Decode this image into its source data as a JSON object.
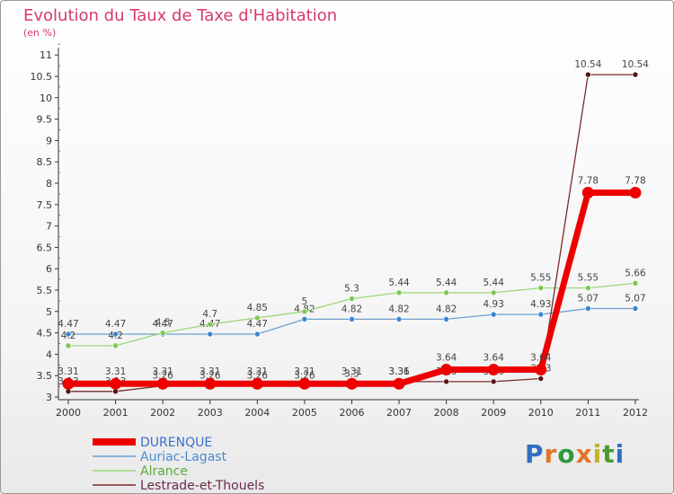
{
  "title": "Evolution du Taux de Taxe d'Habitation",
  "subtitle": "(en %)",
  "brand": [
    "P",
    "r",
    "o",
    "x",
    "i",
    "t",
    "i"
  ],
  "brand_colors": [
    "#2f6fc0",
    "#e0762b",
    "#2f9a3a",
    "#e0762b",
    "#c7b221",
    "#4a9a2c",
    "#2f6fc0"
  ],
  "chart_data": {
    "type": "line",
    "x": [
      "2000",
      "2001",
      "2002",
      "2003",
      "2004",
      "2005",
      "2006",
      "2007",
      "2008",
      "2009",
      "2010",
      "2011",
      "2012"
    ],
    "yticks": [
      "3",
      "3.5",
      "4",
      "4.5",
      "5",
      "5.5",
      "6",
      "6.5",
      "7",
      "7.5",
      "8",
      "8.5",
      "9",
      "9.5",
      "10",
      "10.5",
      "11"
    ],
    "ylim": [
      3,
      11
    ],
    "grid": false,
    "legend_position": "bottom-left",
    "series": [
      {
        "name": "Auriac-Lagast",
        "color": "#6a9fcf",
        "point_color": "#3a86d1",
        "width": 1.3,
        "values": [
          4.47,
          4.47,
          4.47,
          4.47,
          4.47,
          4.82,
          4.82,
          4.82,
          4.82,
          4.93,
          4.93,
          5.07,
          5.07
        ],
        "labels": [
          "4.47",
          "4.47",
          "4.47",
          "4.47",
          "4.47",
          "4.82",
          "4.82",
          "4.82",
          "4.82",
          "4.93",
          "4.93",
          "5.07",
          "5.07"
        ]
      },
      {
        "name": "Alrance",
        "color": "#9bd77a",
        "point_color": "#7cc84f",
        "width": 1.3,
        "values": [
          4.2,
          4.2,
          4.5,
          4.7,
          4.85,
          5,
          5.3,
          5.44,
          5.44,
          5.44,
          5.55,
          5.55,
          5.66
        ],
        "labels": [
          "4.2",
          "4.2",
          "4.5",
          "4.7",
          "4.85",
          "5",
          "5.3",
          "5.44",
          "5.44",
          "5.44",
          "5.55",
          "5.55",
          "5.66"
        ]
      },
      {
        "name": "Lestrade-et-Thouels",
        "color": "#7a2a2a",
        "point_color": "#5a1414",
        "width": 1.3,
        "values": [
          3.13,
          3.13,
          3.26,
          3.26,
          3.26,
          3.26,
          3.3,
          3.36,
          3.36,
          3.36,
          3.43,
          10.54,
          10.54
        ],
        "labels": [
          "3.13",
          "3.13",
          "3.26",
          "3.26",
          "3.26",
          "3.26",
          "3.3",
          "3.36",
          "3.36",
          "3.36",
          "3.43",
          "10.54",
          "10.54"
        ]
      },
      {
        "name": "DURENQUE",
        "color": "#ee0000",
        "point_color": "#ee0000",
        "width": 7,
        "values": [
          3.31,
          3.31,
          3.31,
          3.31,
          3.31,
          3.31,
          3.31,
          3.31,
          3.64,
          3.64,
          3.64,
          7.78,
          7.78
        ],
        "labels": [
          "3.31",
          "3.31",
          "3.31",
          "3.31",
          "3.31",
          "3.31",
          "3.31",
          "3.31",
          "3.64",
          "3.64",
          "3.64",
          "7.78",
          "7.78"
        ]
      }
    ],
    "legend_order": [
      "DURENQUE",
      "Auriac-Lagast",
      "Alrance",
      "Lestrade-et-Thouels"
    ]
  }
}
